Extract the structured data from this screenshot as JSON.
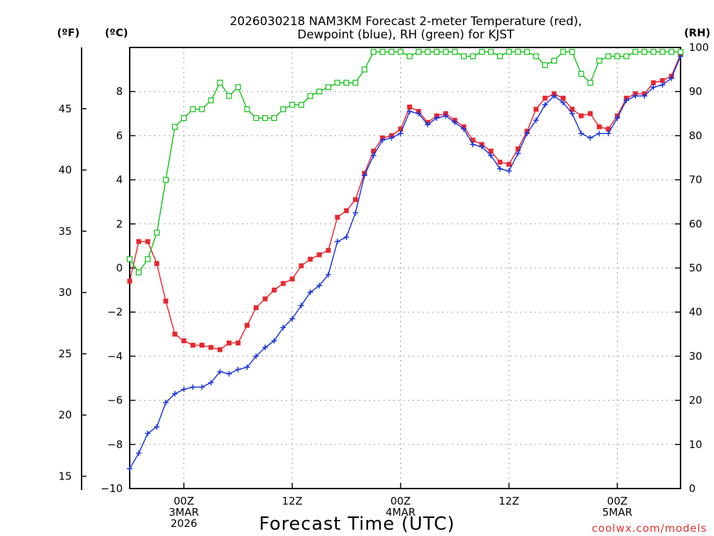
{
  "chart_data": {
    "type": "line",
    "title": [
      "2026030218 NAM3KM Forecast 2-meter Temperature (red),",
      "Dewpoint (blue), RH (green) for KJST"
    ],
    "xlabel": "Forecast Time (UTC)",
    "units": {
      "fahrenheit": "(ºF)",
      "celsius": "(ºC)",
      "rh": "(RH)"
    },
    "credit": "coolwx.com/models",
    "x_range_hours": [
      0,
      61
    ],
    "x_ticks": [
      {
        "hour": 6,
        "lines": [
          "00Z",
          "3MAR",
          "2026"
        ]
      },
      {
        "hour": 18,
        "lines": [
          "12Z"
        ]
      },
      {
        "hour": 30,
        "lines": [
          "00Z",
          "4MAR"
        ]
      },
      {
        "hour": 42,
        "lines": [
          "12Z"
        ]
      },
      {
        "hour": 54,
        "lines": [
          "00Z",
          "5MAR"
        ]
      }
    ],
    "y_celsius": {
      "range": [
        -10,
        10
      ],
      "ticks": [
        "−10",
        "−8",
        "−6",
        "−4",
        "−2",
        "0",
        "2",
        "4",
        "6",
        "8"
      ],
      "tick_values": [
        -10,
        -8,
        -6,
        -4,
        -2,
        0,
        2,
        4,
        6,
        8
      ]
    },
    "y_fahrenheit": {
      "ticks": [
        "15",
        "20",
        "25",
        "30",
        "35",
        "40",
        "45"
      ],
      "tick_values": [
        15,
        20,
        25,
        30,
        35,
        40,
        45
      ]
    },
    "y_rh": {
      "range": [
        0,
        100
      ],
      "ticks": [
        "0",
        "10",
        "20",
        "30",
        "40",
        "50",
        "60",
        "70",
        "80",
        "90",
        "100"
      ],
      "tick_values": [
        0,
        10,
        20,
        30,
        40,
        50,
        60,
        70,
        80,
        90,
        100
      ]
    },
    "hours": [
      0,
      1,
      2,
      3,
      4,
      5,
      6,
      7,
      8,
      9,
      10,
      11,
      12,
      13,
      14,
      15,
      16,
      17,
      18,
      19,
      20,
      21,
      22,
      23,
      24,
      25,
      26,
      27,
      28,
      29,
      30,
      31,
      32,
      33,
      34,
      35,
      36,
      37,
      38,
      39,
      40,
      41,
      42,
      43,
      44,
      45,
      46,
      47,
      48,
      49,
      50,
      51,
      52,
      53,
      54,
      55,
      56,
      57,
      58,
      59,
      60,
      61
    ],
    "series": [
      {
        "name": "Temperature",
        "unit": "C",
        "color": "#e8282f",
        "values": [
          -0.6,
          1.2,
          1.2,
          0.2,
          -1.5,
          -3.0,
          -3.3,
          -3.5,
          -3.5,
          -3.6,
          -3.7,
          -3.4,
          -3.4,
          -2.6,
          -1.8,
          -1.4,
          -1.0,
          -0.7,
          -0.5,
          0.1,
          0.4,
          0.6,
          0.8,
          2.3,
          2.6,
          3.1,
          4.3,
          5.3,
          5.9,
          6.0,
          6.3,
          7.3,
          7.1,
          6.6,
          6.9,
          7.0,
          6.7,
          6.4,
          5.8,
          5.6,
          5.3,
          4.8,
          4.7,
          5.4,
          6.2,
          7.2,
          7.7,
          7.9,
          7.7,
          7.2,
          6.9,
          7.0,
          6.4,
          6.3,
          6.9,
          7.7,
          7.9,
          7.9,
          8.4,
          8.5,
          8.7,
          9.7
        ]
      },
      {
        "name": "Dewpoint",
        "unit": "C",
        "color": "#1a35e0",
        "values": [
          -9.1,
          -8.4,
          -7.5,
          -7.2,
          -6.1,
          -5.7,
          -5.5,
          -5.4,
          -5.4,
          -5.2,
          -4.7,
          -4.8,
          -4.6,
          -4.5,
          -4.0,
          -3.6,
          -3.3,
          -2.7,
          -2.3,
          -1.7,
          -1.1,
          -0.8,
          -0.3,
          1.2,
          1.4,
          2.5,
          4.2,
          5.1,
          5.8,
          5.9,
          6.1,
          7.1,
          7.0,
          6.5,
          6.8,
          6.9,
          6.6,
          6.3,
          5.6,
          5.5,
          5.1,
          4.5,
          4.4,
          5.2,
          6.1,
          6.7,
          7.4,
          7.8,
          7.5,
          7.0,
          6.1,
          5.9,
          6.1,
          6.1,
          6.8,
          7.6,
          7.8,
          7.8,
          8.2,
          8.3,
          8.6,
          9.6
        ]
      },
      {
        "name": "RH",
        "unit": "%",
        "color": "#18c31c",
        "values": [
          52,
          49,
          52,
          58,
          70,
          82,
          84,
          86,
          86,
          88,
          92,
          89,
          91,
          86,
          84,
          84,
          84,
          86,
          87,
          87,
          89,
          90,
          91,
          92,
          92,
          92,
          95,
          99,
          99,
          99,
          99,
          98,
          99,
          99,
          99,
          99,
          99,
          98,
          98,
          99,
          99,
          98,
          99,
          99,
          99,
          98,
          96,
          97,
          99,
          99,
          94,
          92,
          97,
          98,
          98,
          98,
          99,
          99,
          99,
          99,
          99,
          99
        ]
      }
    ]
  }
}
